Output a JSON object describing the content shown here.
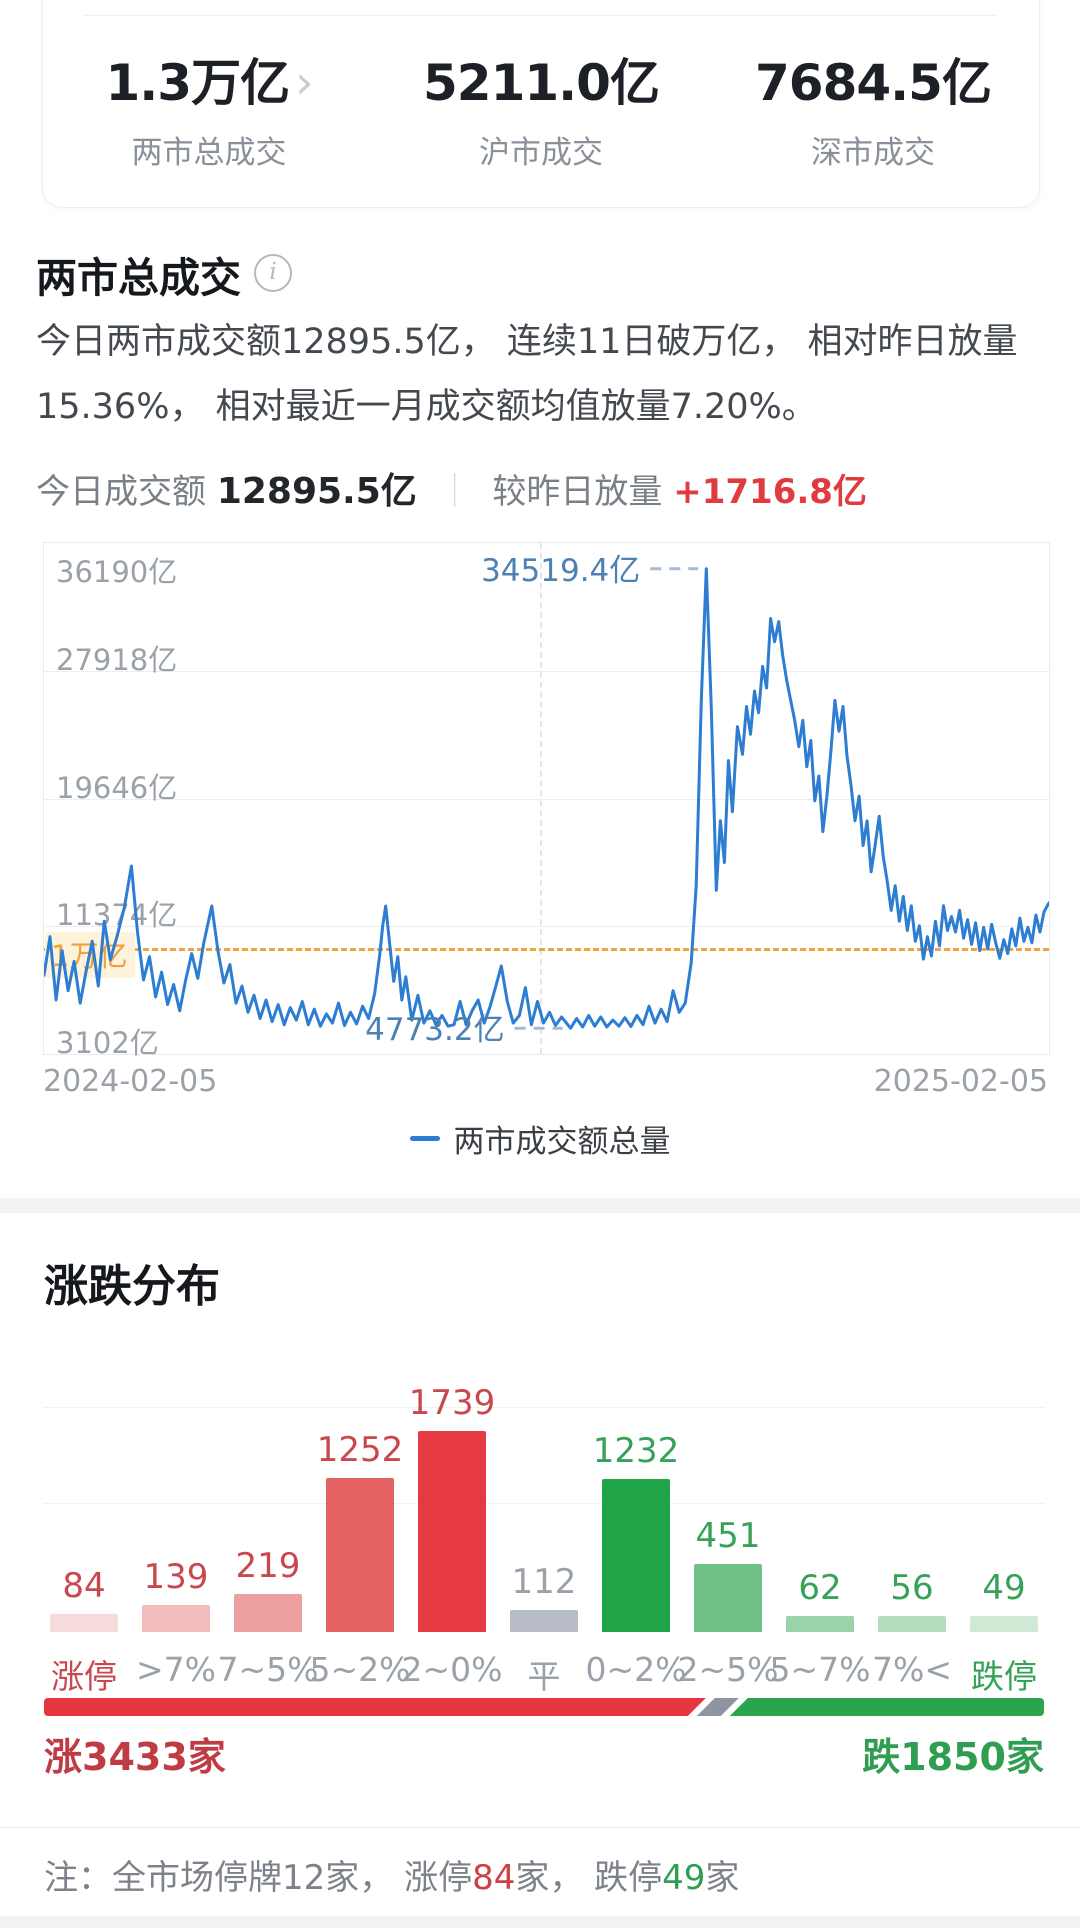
{
  "icons": {
    "chevron": "›",
    "info": "i"
  },
  "colors": {
    "line_blue": "#2d7dd2",
    "ref_orange": "#eda63f",
    "annotation_blue": "#4d80b3",
    "annotation_dash": "#a4bbd1",
    "up_red": "#c9474f",
    "down_green": "#36a258",
    "flat_gray": "#9aa1a9",
    "strip_red": "#e6353f",
    "strip_green": "#2aa54c",
    "strip_slash": "#8f959e",
    "plus_red": "#e03b40"
  },
  "top_card": {
    "stats": [
      {
        "value": "1.3万亿",
        "label": "两市总成交"
      },
      {
        "value": "5211.0亿",
        "label": "沪市成交"
      },
      {
        "value": "7684.5亿",
        "label": "深市成交"
      }
    ]
  },
  "section": {
    "title": "两市总成交",
    "description": "今日两市成交额12895.5亿， 连续11日破万亿， 相对昨日放量15.36%， 相对最近一月成交额均值放量7.20%。",
    "today_label": "今日成交额",
    "today_value": "12895.5亿",
    "separator": "｜",
    "vs_label": "较昨日放量",
    "vs_value": "+1716.8亿"
  },
  "legend": {
    "label": "两市成交额总量"
  },
  "distribution": {
    "title": "涨跌分布"
  },
  "advance_decline": {
    "up_count": 3433,
    "down_count": 1850,
    "up_label": "涨3433家",
    "down_label": "跌1850家"
  },
  "note": {
    "segments": [
      {
        "text": "注：全市场停牌12家， 涨停",
        "tone": "gray"
      },
      {
        "text": "84",
        "tone": "red"
      },
      {
        "text": "家， 跌停",
        "tone": "gray"
      },
      {
        "text": "49",
        "tone": "green"
      },
      {
        "text": "家",
        "tone": "gray"
      }
    ]
  },
  "chart_data": [
    {
      "type": "line",
      "title": "两市总成交",
      "legend": [
        "两市成交额总量"
      ],
      "legend_position": "bottom",
      "grid": true,
      "x_range": [
        "2024-02-05",
        "2025-02-05"
      ],
      "ylim": [
        3102,
        36190
      ],
      "y_ticks": [
        36190,
        27918,
        19646,
        11374,
        3102
      ],
      "unit": "亿",
      "vertical_gridline_x_frac": 0.494,
      "reference_line": {
        "value": 10000,
        "label": "1万亿"
      },
      "annotations": {
        "max": {
          "value": 34519.4,
          "label": "34519.4亿",
          "x_frac": 0.659
        },
        "min": {
          "value": 4773.2,
          "label": "4773.2亿",
          "x_frac": 0.524
        }
      },
      "today_value": 12895.5,
      "points": [
        [
          0,
          8200
        ],
        [
          0.006,
          10700
        ],
        [
          0.012,
          6600
        ],
        [
          0.018,
          9800
        ],
        [
          0.024,
          7200
        ],
        [
          0.03,
          9100
        ],
        [
          0.036,
          6400
        ],
        [
          0.042,
          8500
        ],
        [
          0.048,
          10400
        ],
        [
          0.054,
          7500
        ],
        [
          0.06,
          11700
        ],
        [
          0.066,
          9200
        ],
        [
          0.073,
          10800
        ],
        [
          0.08,
          12600
        ],
        [
          0.087,
          15274
        ],
        [
          0.093,
          11000
        ],
        [
          0.099,
          7900
        ],
        [
          0.105,
          9400
        ],
        [
          0.111,
          6800
        ],
        [
          0.117,
          8400
        ],
        [
          0.123,
          6300
        ],
        [
          0.129,
          7600
        ],
        [
          0.135,
          5900
        ],
        [
          0.141,
          7900
        ],
        [
          0.147,
          9600
        ],
        [
          0.153,
          8000
        ],
        [
          0.159,
          10300
        ],
        [
          0.167,
          12684
        ],
        [
          0.173,
          9800
        ],
        [
          0.179,
          7700
        ],
        [
          0.185,
          8900
        ],
        [
          0.191,
          6400
        ],
        [
          0.197,
          7500
        ],
        [
          0.203,
          5800
        ],
        [
          0.209,
          6900
        ],
        [
          0.215,
          5400
        ],
        [
          0.221,
          6600
        ],
        [
          0.227,
          5200
        ],
        [
          0.233,
          6300
        ],
        [
          0.239,
          5000
        ],
        [
          0.245,
          6100
        ],
        [
          0.251,
          5300
        ],
        [
          0.257,
          6500
        ],
        [
          0.263,
          5000
        ],
        [
          0.269,
          6000
        ],
        [
          0.275,
          4900
        ],
        [
          0.281,
          5700
        ],
        [
          0.287,
          5100
        ],
        [
          0.293,
          6400
        ],
        [
          0.299,
          4950
        ],
        [
          0.305,
          5800
        ],
        [
          0.311,
          5050
        ],
        [
          0.317,
          6200
        ],
        [
          0.323,
          5400
        ],
        [
          0.329,
          7000
        ],
        [
          0.334,
          9500
        ],
        [
          0.337,
          11400
        ],
        [
          0.34,
          12684
        ],
        [
          0.344,
          10200
        ],
        [
          0.348,
          7800
        ],
        [
          0.352,
          9400
        ],
        [
          0.356,
          6600
        ],
        [
          0.36,
          8100
        ],
        [
          0.366,
          5300
        ],
        [
          0.372,
          6900
        ],
        [
          0.378,
          5100
        ],
        [
          0.384,
          5900
        ],
        [
          0.39,
          5000
        ],
        [
          0.396,
          5600
        ],
        [
          0.402,
          4900
        ],
        [
          0.408,
          5000
        ],
        [
          0.414,
          6500
        ],
        [
          0.42,
          5000
        ],
        [
          0.426,
          5900
        ],
        [
          0.432,
          6600
        ],
        [
          0.438,
          5100
        ],
        [
          0.444,
          6200
        ],
        [
          0.45,
          7600
        ],
        [
          0.455,
          8800
        ],
        [
          0.461,
          6500
        ],
        [
          0.467,
          5100
        ],
        [
          0.473,
          5600
        ],
        [
          0.479,
          7400
        ],
        [
          0.485,
          5000
        ],
        [
          0.491,
          6500
        ],
        [
          0.497,
          5100
        ],
        [
          0.503,
          5800
        ],
        [
          0.509,
          4950
        ],
        [
          0.515,
          5500
        ],
        [
          0.524,
          4773.2
        ],
        [
          0.53,
          5400
        ],
        [
          0.536,
          4850
        ],
        [
          0.542,
          5600
        ],
        [
          0.548,
          4900
        ],
        [
          0.554,
          5500
        ],
        [
          0.56,
          4850
        ],
        [
          0.566,
          5300
        ],
        [
          0.572,
          4900
        ],
        [
          0.578,
          5450
        ],
        [
          0.584,
          4880
        ],
        [
          0.59,
          5600
        ],
        [
          0.596,
          5000
        ],
        [
          0.602,
          6200
        ],
        [
          0.608,
          5100
        ],
        [
          0.614,
          6000
        ],
        [
          0.62,
          5200
        ],
        [
          0.626,
          7200
        ],
        [
          0.632,
          5800
        ],
        [
          0.638,
          6400
        ],
        [
          0.644,
          9000
        ],
        [
          0.649,
          14000
        ],
        [
          0.654,
          26000
        ],
        [
          0.659,
          34519.4
        ],
        [
          0.664,
          25500
        ],
        [
          0.669,
          13700
        ],
        [
          0.673,
          18200
        ],
        [
          0.677,
          15500
        ],
        [
          0.681,
          22100
        ],
        [
          0.685,
          18800
        ],
        [
          0.69,
          24300
        ],
        [
          0.695,
          22500
        ],
        [
          0.699,
          25600
        ],
        [
          0.703,
          23800
        ],
        [
          0.707,
          26600
        ],
        [
          0.711,
          25200
        ],
        [
          0.715,
          28200
        ],
        [
          0.719,
          26800
        ],
        [
          0.723,
          31300
        ],
        [
          0.727,
          29800
        ],
        [
          0.731,
          31100
        ],
        [
          0.735,
          28900
        ],
        [
          0.739,
          27300
        ],
        [
          0.743,
          26000
        ],
        [
          0.747,
          24700
        ],
        [
          0.751,
          23000
        ],
        [
          0.755,
          24700
        ],
        [
          0.759,
          21700
        ],
        [
          0.763,
          23400
        ],
        [
          0.767,
          19500
        ],
        [
          0.771,
          21100
        ],
        [
          0.775,
          17500
        ],
        [
          0.779,
          19800
        ],
        [
          0.783,
          22700
        ],
        [
          0.787,
          26000
        ],
        [
          0.791,
          24000
        ],
        [
          0.795,
          25600
        ],
        [
          0.799,
          22400
        ],
        [
          0.803,
          20500
        ],
        [
          0.807,
          18200
        ],
        [
          0.811,
          19800
        ],
        [
          0.815,
          16600
        ],
        [
          0.819,
          18200
        ],
        [
          0.823,
          14900
        ],
        [
          0.827,
          16600
        ],
        [
          0.831,
          18500
        ],
        [
          0.835,
          15900
        ],
        [
          0.839,
          14300
        ],
        [
          0.843,
          12400
        ],
        [
          0.847,
          14000
        ],
        [
          0.851,
          11700
        ],
        [
          0.855,
          13300
        ],
        [
          0.859,
          11100
        ],
        [
          0.863,
          12700
        ],
        [
          0.867,
          10400
        ],
        [
          0.871,
          11400
        ],
        [
          0.875,
          9250
        ],
        [
          0.879,
          10700
        ],
        [
          0.883,
          9450
        ],
        [
          0.887,
          11700
        ],
        [
          0.891,
          10100
        ],
        [
          0.895,
          12700
        ],
        [
          0.899,
          11100
        ],
        [
          0.903,
          12000
        ],
        [
          0.907,
          11000
        ],
        [
          0.911,
          12400
        ],
        [
          0.915,
          10600
        ],
        [
          0.919,
          11800
        ],
        [
          0.923,
          10200
        ],
        [
          0.927,
          11600
        ],
        [
          0.931,
          9800
        ],
        [
          0.935,
          11300
        ],
        [
          0.939,
          9900
        ],
        [
          0.943,
          11500
        ],
        [
          0.947,
          10300
        ],
        [
          0.951,
          9300
        ],
        [
          0.955,
          10500
        ],
        [
          0.959,
          9600
        ],
        [
          0.963,
          11200
        ],
        [
          0.967,
          10100
        ],
        [
          0.971,
          11900
        ],
        [
          0.975,
          10400
        ],
        [
          0.979,
          11300
        ],
        [
          0.983,
          10300
        ],
        [
          0.987,
          12100
        ],
        [
          0.991,
          11000
        ],
        [
          0.995,
          12300
        ],
        [
          1,
          12895.5
        ]
      ]
    },
    {
      "type": "bar",
      "title": "涨跌分布",
      "categories": [
        "涨停",
        ">7%",
        "7~5%",
        "5~2%",
        "2~0%",
        "平",
        "0~2%",
        "2~5%",
        "5~7%",
        "7%<",
        "跌停"
      ],
      "values": [
        84,
        139,
        219,
        1252,
        1739,
        112,
        1232,
        451,
        62,
        56,
        49
      ],
      "sides": [
        "up",
        "up",
        "up",
        "up",
        "up",
        "flat",
        "down",
        "down",
        "down",
        "down",
        "down"
      ],
      "bar_colors": [
        "#f7dada",
        "#f3bcbc",
        "#eda0a0",
        "#e66262",
        "#e63a42",
        "#b7bcc6",
        "#22a449",
        "#6fc187",
        "#9ad2a9",
        "#b5ddbd",
        "#cfe9d4"
      ],
      "gridline_values": [
        1000,
        2000
      ],
      "ylim": [
        0,
        2000
      ],
      "grid": true
    }
  ]
}
